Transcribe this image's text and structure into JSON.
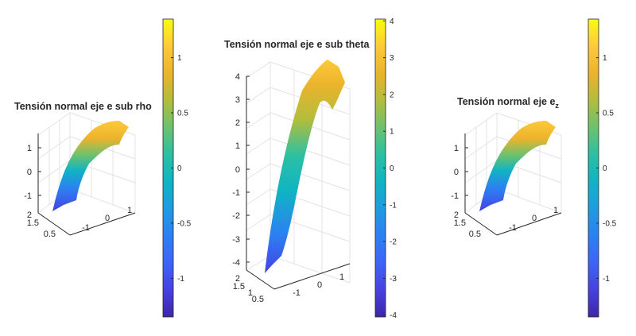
{
  "chart_data": [
    {
      "type": "surface",
      "title": "Tensión normal eje e sub rho",
      "title_main": "Tensión normal eje e sub rho",
      "title_sub": "",
      "z_ticks": [
        {
          "value": -1,
          "label": "-1"
        },
        {
          "value": 0,
          "label": "0"
        },
        {
          "value": 1,
          "label": "1"
        }
      ],
      "y_ticks": [
        {
          "value": 2,
          "label": "2"
        },
        {
          "value": 1.5,
          "label": "1.5"
        },
        {
          "value": 0.5,
          "label": "0.5"
        }
      ],
      "x_ticks": [
        {
          "value": -1,
          "label": "-1"
        },
        {
          "value": 0,
          "label": "0"
        },
        {
          "value": 1,
          "label": "1"
        }
      ],
      "colorbar": {
        "range": [
          -1.35,
          1.35
        ],
        "ticks": [
          {
            "value": 1,
            "label": "1"
          },
          {
            "value": 0.5,
            "label": "0.5"
          },
          {
            "value": 0,
            "label": "0"
          },
          {
            "value": -0.5,
            "label": "-0.5"
          },
          {
            "value": -1,
            "label": "-1"
          }
        ]
      }
    },
    {
      "type": "surface",
      "title": "Tensión normal eje e sub theta",
      "title_main": "Tensión normal eje e sub theta",
      "title_sub": "",
      "z_ticks": [
        {
          "value": -4,
          "label": "-4"
        },
        {
          "value": -3,
          "label": "-3"
        },
        {
          "value": -2,
          "label": "-2"
        },
        {
          "value": -1,
          "label": "-1"
        },
        {
          "value": 0,
          "label": "0"
        },
        {
          "value": 1,
          "label": "1"
        },
        {
          "value": 2,
          "label": "2"
        },
        {
          "value": 3,
          "label": "3"
        },
        {
          "value": 4,
          "label": "4"
        }
      ],
      "y_ticks": [
        {
          "value": 2,
          "label": "2"
        },
        {
          "value": 1.5,
          "label": "1.5"
        },
        {
          "value": 1,
          "label": "1"
        },
        {
          "value": 0.5,
          "label": "0.5"
        }
      ],
      "x_ticks": [
        {
          "value": -1,
          "label": "-1"
        },
        {
          "value": 0,
          "label": "0"
        },
        {
          "value": 1,
          "label": "1"
        }
      ],
      "colorbar": {
        "range": [
          -4.05,
          4.05
        ],
        "ticks": [
          {
            "value": 4,
            "label": "4"
          },
          {
            "value": 3,
            "label": "3"
          },
          {
            "value": 2,
            "label": "2"
          },
          {
            "value": 1,
            "label": "1"
          },
          {
            "value": 0,
            "label": "0"
          },
          {
            "value": -1,
            "label": "-1"
          },
          {
            "value": -2,
            "label": "-2"
          },
          {
            "value": -3,
            "label": "-3"
          },
          {
            "value": -4,
            "label": "-4"
          }
        ]
      }
    },
    {
      "type": "surface",
      "title": "Tensión normal eje e_z",
      "title_main": "Tensión normal eje e",
      "title_sub": "z",
      "z_ticks": [
        {
          "value": -1,
          "label": "-1"
        },
        {
          "value": 0,
          "label": "0"
        },
        {
          "value": 1,
          "label": "1"
        }
      ],
      "y_ticks": [
        {
          "value": 2,
          "label": "2"
        },
        {
          "value": 1.5,
          "label": "1.5"
        },
        {
          "value": 0.5,
          "label": "0.5"
        }
      ],
      "x_ticks": [
        {
          "value": -1,
          "label": "-1"
        },
        {
          "value": 0,
          "label": "0"
        },
        {
          "value": 1,
          "label": "1"
        }
      ],
      "colorbar": {
        "range": [
          -1.35,
          1.35
        ],
        "ticks": [
          {
            "value": 1,
            "label": "1"
          },
          {
            "value": 0.5,
            "label": "0.5"
          },
          {
            "value": 0,
            "label": "0"
          },
          {
            "value": -0.5,
            "label": "-0.5"
          },
          {
            "value": -1,
            "label": "-1"
          }
        ]
      }
    }
  ],
  "colors": {
    "parula": [
      "#3e26a8",
      "#4741e1",
      "#3d64f7",
      "#2c80f3",
      "#1e9ce0",
      "#10b3c4",
      "#2bc0a2",
      "#6bc26e",
      "#b2bd3d",
      "#ebb32c",
      "#fec93a",
      "#f9fb15"
    ],
    "grid": "#e3e3e3",
    "axis": "#262626"
  }
}
